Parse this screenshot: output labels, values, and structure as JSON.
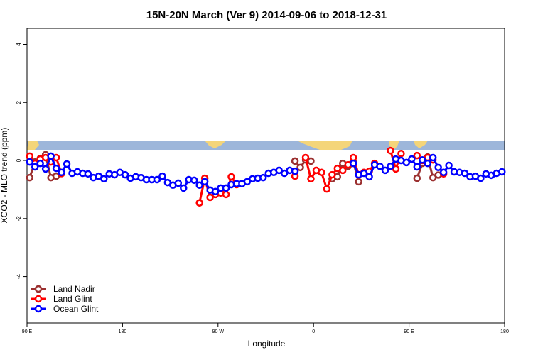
{
  "chart_data": {
    "type": "line",
    "title": "15N-20N March (Ver 9)   2014-09-06 to 2018-12-31",
    "xlabel": "Longitude",
    "ylabel": "XCO2 - MLO trend (ppm)",
    "xlim": [
      90,
      540
    ],
    "ylim": [
      -5.6,
      4.55
    ],
    "xticks": [
      {
        "value": 90,
        "label": "90 E"
      },
      180,
      {
        "value": 270,
        "label": "90 W"
      },
      {
        "value": 360,
        "label": "0"
      },
      {
        "value": 450,
        "label": "90 E"
      },
      {
        "value": 540,
        "label": "180"
      }
    ],
    "yticks": [
      -4,
      -2,
      0,
      2,
      4
    ],
    "legend": "bottom-left",
    "x": [
      92.5,
      97.5,
      102.5,
      107.5,
      112.5,
      117.5,
      122.5,
      127.5,
      132.5,
      137.5,
      142.5,
      147.5,
      152.5,
      157.5,
      162.5,
      167.5,
      172.5,
      177.5,
      182.5,
      187.5,
      192.5,
      197.5,
      202.5,
      207.5,
      212.5,
      217.5,
      222.5,
      227.5,
      232.5,
      237.5,
      242.5,
      247.5,
      252.5,
      257.5,
      262.5,
      267.5,
      272.5,
      277.5,
      282.5,
      287.5,
      292.5,
      297.5,
      302.5,
      307.5,
      312.5,
      317.5,
      322.5,
      327.5,
      332.5,
      337.5,
      342.5,
      347.5,
      352.5,
      357.5,
      362.5,
      367.5,
      372.5,
      377.5,
      382.5,
      387.5,
      392.5,
      397.5,
      402.5,
      407.5,
      412.5,
      417.5,
      422.5,
      427.5,
      432.5,
      437.5,
      442.5,
      447.5,
      452.5,
      457.5,
      462.5,
      467.5,
      472.5,
      477.5,
      482.5,
      487.5,
      492.5,
      497.5,
      502.5,
      507.5,
      512.5,
      517.5,
      522.5,
      527.5,
      532.5,
      537.5
    ],
    "series": [
      {
        "name": "Land Nadir",
        "color": "#9b3030",
        "values": [
          -0.59,
          -0.05,
          0.07,
          0.2,
          -0.59,
          -0.54,
          null,
          null,
          null,
          null,
          null,
          null,
          null,
          null,
          null,
          null,
          null,
          null,
          null,
          null,
          null,
          null,
          null,
          null,
          null,
          null,
          null,
          null,
          null,
          null,
          null,
          null,
          null,
          null,
          null,
          null,
          null,
          null,
          null,
          null,
          null,
          null,
          null,
          null,
          null,
          null,
          null,
          null,
          null,
          null,
          -0.02,
          -0.24,
          0.02,
          -0.02,
          null,
          null,
          null,
          -0.63,
          -0.56,
          -0.1,
          -0.2,
          -0.05,
          -0.73,
          null,
          null,
          null,
          null,
          null,
          null,
          null,
          null,
          null,
          null,
          -0.61,
          -0.1,
          0.12,
          -0.59,
          -0.5,
          null,
          null,
          null,
          null,
          null,
          null,
          null,
          null,
          null,
          null,
          null,
          null
        ]
      },
      {
        "name": "Land Glint",
        "color": "#ff0000",
        "values": [
          0.15,
          -0.1,
          0.05,
          0.1,
          -0.05,
          0.1,
          -0.45,
          null,
          null,
          null,
          null,
          null,
          null,
          null,
          null,
          null,
          null,
          null,
          null,
          null,
          null,
          null,
          null,
          null,
          null,
          null,
          null,
          null,
          null,
          null,
          null,
          null,
          -1.46,
          -0.61,
          -1.27,
          -1.17,
          -1.12,
          -1.17,
          -0.56,
          -0.83,
          null,
          null,
          null,
          null,
          null,
          null,
          null,
          null,
          null,
          null,
          -0.54,
          null,
          0.1,
          -0.63,
          -0.34,
          -0.41,
          -0.98,
          -0.49,
          -0.27,
          -0.34,
          -0.15,
          0.1,
          -0.49,
          -0.41,
          -0.37,
          -0.1,
          null,
          null,
          0.34,
          -0.29,
          0.24,
          null,
          null,
          0.17,
          0,
          0.1,
          0.02,
          null,
          -0.46,
          null,
          null,
          null,
          null,
          null,
          null,
          null,
          null,
          null,
          null,
          null
        ]
      },
      {
        "name": "Ocean Glint",
        "color": "#0000ff",
        "values": [
          -0.05,
          -0.22,
          -0.1,
          -0.29,
          0.15,
          -0.27,
          -0.41,
          -0.12,
          -0.44,
          -0.39,
          -0.44,
          -0.46,
          -0.59,
          -0.54,
          -0.63,
          -0.46,
          -0.49,
          -0.41,
          -0.49,
          -0.61,
          -0.56,
          -0.59,
          -0.66,
          -0.66,
          -0.66,
          -0.54,
          -0.76,
          -0.85,
          -0.78,
          -0.95,
          -0.66,
          -0.68,
          -0.85,
          -0.73,
          -1.02,
          -1.07,
          -0.95,
          -0.95,
          -0.83,
          -0.8,
          -0.8,
          -0.73,
          -0.63,
          -0.61,
          -0.59,
          -0.44,
          -0.41,
          -0.34,
          -0.44,
          -0.34,
          -0.37,
          null,
          null,
          null,
          null,
          null,
          null,
          null,
          null,
          null,
          null,
          -0.1,
          -0.49,
          -0.44,
          -0.56,
          -0.15,
          -0.2,
          -0.34,
          -0.2,
          0.05,
          0,
          -0.07,
          0.05,
          -0.22,
          0.02,
          -0.1,
          0.1,
          -0.24,
          -0.41,
          -0.17,
          -0.39,
          -0.41,
          -0.44,
          -0.56,
          -0.54,
          -0.61,
          -0.46,
          -0.51,
          -0.44,
          -0.39
        ]
      }
    ]
  }
}
